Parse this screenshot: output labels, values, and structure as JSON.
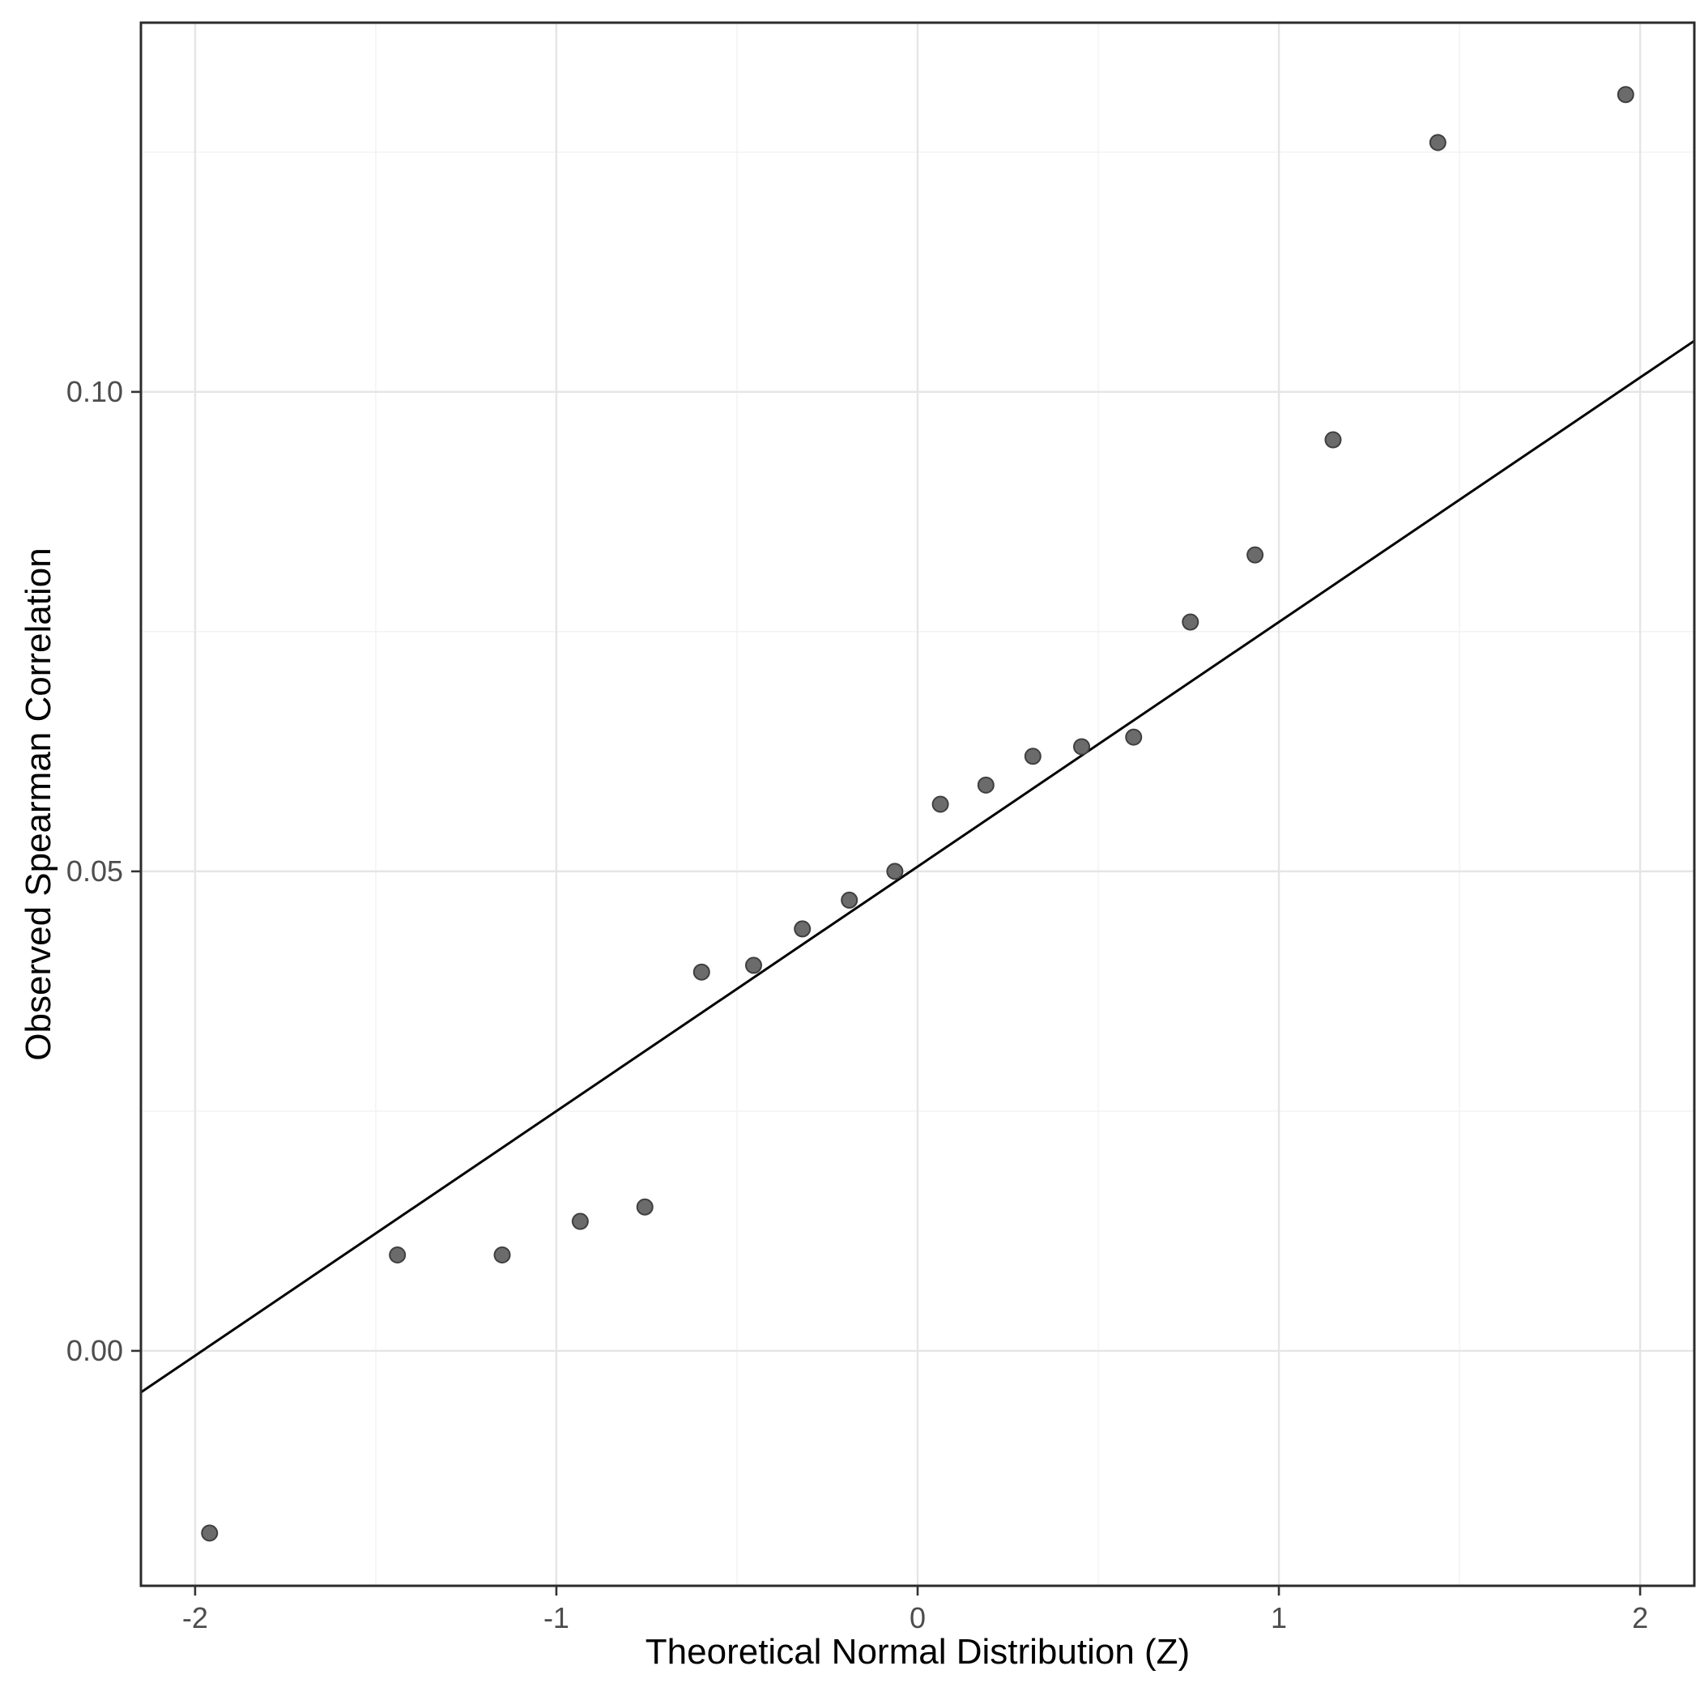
{
  "chart_data": {
    "type": "scatter",
    "title": "",
    "xlabel": "Theoretical Normal Distribution (Z)",
    "ylabel": "Observed Spearman Correlation",
    "xlim": [
      -2.15,
      2.15
    ],
    "ylim": [
      -0.0245,
      0.1385
    ],
    "x_ticks": [
      -2,
      -1,
      0,
      1,
      2
    ],
    "x_tick_labels": [
      "-2",
      "-1",
      "0",
      "1",
      "2"
    ],
    "y_ticks": [
      0.0,
      0.05,
      0.1
    ],
    "y_tick_labels": [
      "0.00",
      "0.05",
      "0.10"
    ],
    "x_minor_ticks": [
      -1.5,
      -0.5,
      0.5,
      1.5
    ],
    "y_minor_ticks": [
      0.025,
      0.075,
      0.125
    ],
    "grid": true,
    "legend_position": "none",
    "points": [
      {
        "x": -1.96,
        "y": -0.019
      },
      {
        "x": -1.44,
        "y": 0.01
      },
      {
        "x": -1.15,
        "y": 0.01
      },
      {
        "x": -0.934,
        "y": 0.0135
      },
      {
        "x": -0.755,
        "y": 0.015
      },
      {
        "x": -0.598,
        "y": 0.0395
      },
      {
        "x": -0.454,
        "y": 0.0402
      },
      {
        "x": -0.319,
        "y": 0.044
      },
      {
        "x": -0.189,
        "y": 0.047
      },
      {
        "x": -0.063,
        "y": 0.05
      },
      {
        "x": 0.063,
        "y": 0.057
      },
      {
        "x": 0.189,
        "y": 0.059
      },
      {
        "x": 0.319,
        "y": 0.062
      },
      {
        "x": 0.454,
        "y": 0.063
      },
      {
        "x": 0.598,
        "y": 0.064
      },
      {
        "x": 0.755,
        "y": 0.076
      },
      {
        "x": 0.934,
        "y": 0.083
      },
      {
        "x": 1.15,
        "y": 0.095
      },
      {
        "x": 1.44,
        "y": 0.126
      },
      {
        "x": 1.96,
        "y": 0.131
      }
    ],
    "reference_line": {
      "intercept": 0.0505,
      "slope": 0.0255
    },
    "colors": {
      "point_fill": "#6b6b6b",
      "point_stroke": "#3f3f3f",
      "reference_line": "#000000",
      "grid_major": "#e5e5e5",
      "grid_minor": "#f2f2f2",
      "panel_border": "#2b2b2b",
      "tick_mark": "#333333",
      "tick_label": "#4d4d4d",
      "panel_background": "#ffffff"
    }
  }
}
